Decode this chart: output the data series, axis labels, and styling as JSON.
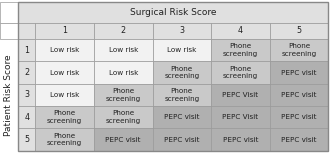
{
  "title_col": "Surgical Risk Score",
  "title_row": "Patient Risk Score",
  "col_headers": [
    "1",
    "2",
    "3",
    "4",
    "5"
  ],
  "row_headers": [
    "1",
    "2",
    "3",
    "4",
    "5"
  ],
  "cells": [
    [
      "Low risk",
      "Low risk",
      "Low risk",
      "Phone\nscreening",
      "Phone\nscreening"
    ],
    [
      "Low risk",
      "Low risk",
      "Phone\nscreening",
      "Phone\nscreening",
      "PEPC visit"
    ],
    [
      "Low risk",
      "Phone\nscreening",
      "Phone\nscreening",
      "PEPC Visit",
      "PEPC visit"
    ],
    [
      "Phone\nscreening",
      "Phone\nscreening",
      "PEPC visit",
      "PEPC Visit",
      "PEPC visit"
    ],
    [
      "Phone\nscreening",
      "PEPC visit",
      "PEPC visit",
      "PEPC visit",
      "PEPC visit"
    ]
  ],
  "cell_colors": [
    [
      "#f2f2f2",
      "#f2f2f2",
      "#f2f2f2",
      "#c9c9c9",
      "#c9c9c9"
    ],
    [
      "#f2f2f2",
      "#f2f2f2",
      "#c9c9c9",
      "#c9c9c9",
      "#b0b0b0"
    ],
    [
      "#f2f2f2",
      "#c9c9c9",
      "#c9c9c9",
      "#b0b0b0",
      "#b0b0b0"
    ],
    [
      "#c9c9c9",
      "#c9c9c9",
      "#b0b0b0",
      "#b0b0b0",
      "#b0b0b0"
    ],
    [
      "#c9c9c9",
      "#b0b0b0",
      "#b0b0b0",
      "#b0b0b0",
      "#b0b0b0"
    ]
  ],
  "header_bg": "#e0e0e0",
  "corner_bg": "#e0e0e0",
  "outer_bg": "#ffffff",
  "border_color": "#999999",
  "text_color": "#222222",
  "cell_fontsize": 5.2,
  "header_fontsize": 5.8,
  "title_fontsize": 6.5,
  "row_label_fontsize": 6.5
}
